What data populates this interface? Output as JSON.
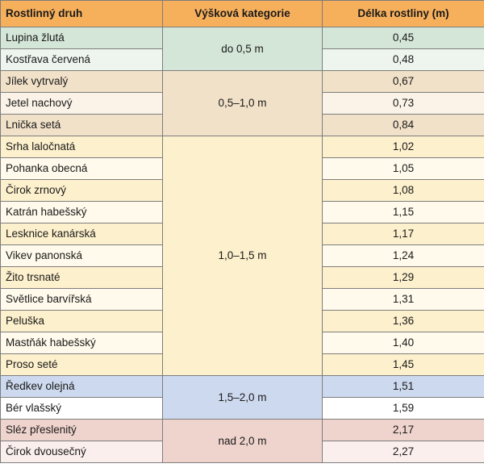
{
  "headers": [
    "Rostlinný druh",
    "Výšková kategorie",
    "Délka rostliny (m)"
  ],
  "groups": [
    {
      "category": "do 0,5 m",
      "colors": [
        "#d4e6d8",
        "#eef5ef"
      ],
      "rows": [
        {
          "name": "Lupina žlutá",
          "value": "0,45"
        },
        {
          "name": "Kostřava červená",
          "value": "0,48"
        }
      ]
    },
    {
      "category": "0,5–1,0 m",
      "colors": [
        "#f1e1c9",
        "#fbf3e8"
      ],
      "rows": [
        {
          "name": "Jílek vytrvalý",
          "value": "0,67"
        },
        {
          "name": "Jetel nachový",
          "value": "0,73"
        },
        {
          "name": "Lnička setá",
          "value": "0,84"
        }
      ]
    },
    {
      "category": "1,0–1,5 m",
      "colors": [
        "#fdf0cc",
        "#fffaeb"
      ],
      "rows": [
        {
          "name": "Srha laločnatá",
          "value": "1,02"
        },
        {
          "name": "Pohanka obecná",
          "value": "1,05"
        },
        {
          "name": "Čirok zrnový",
          "value": "1,08"
        },
        {
          "name": "Katrán habešský",
          "value": "1,15"
        },
        {
          "name": "Lesknice kanárská",
          "value": "1,17"
        },
        {
          "name": "Vikev panonská",
          "value": "1,24"
        },
        {
          "name": "Žito trsnaté",
          "value": "1,29"
        },
        {
          "name": "Světlice barvířská",
          "value": "1,31"
        },
        {
          "name": "Peluška",
          "value": "1,36"
        },
        {
          "name": "Mastňák habešský",
          "value": "1,40"
        },
        {
          "name": "Proso seté",
          "value": "1,45"
        }
      ]
    },
    {
      "category": "1,5–2,0 m",
      "colors": [
        "#cdd9ee",
        "#ffffff"
      ],
      "rows": [
        {
          "name": "Ředkev olejná",
          "value": "1,51"
        },
        {
          "name": "Bér vlašský",
          "value": "1,59"
        }
      ]
    },
    {
      "category": "nad 2,0 m",
      "colors": [
        "#efd3cd",
        "#faefed"
      ],
      "rows": [
        {
          "name": "Sléz přeslenitý",
          "value": "2,17"
        },
        {
          "name": "Čirok dvousečný",
          "value": "2,27"
        }
      ]
    }
  ]
}
